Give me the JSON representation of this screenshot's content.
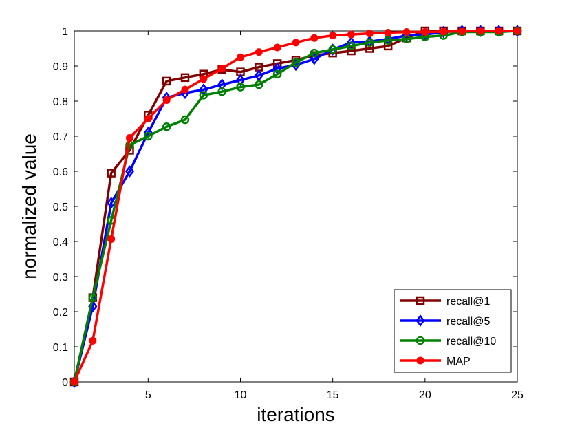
{
  "chart_data": {
    "type": "line",
    "title": "",
    "xlabel": "iterations",
    "ylabel": "normalized value",
    "xlim": [
      1,
      25
    ],
    "ylim": [
      0,
      1
    ],
    "xticks": [
      5,
      10,
      15,
      20,
      25
    ],
    "yticks": [
      0,
      0.1,
      0.2,
      0.3,
      0.4,
      0.5,
      0.6,
      0.7,
      0.8,
      0.9,
      1
    ],
    "ytick_labels": [
      "0",
      "0.1",
      "0.2",
      "0.3",
      "0.4",
      "0.5",
      "0.6",
      "0.7",
      "0.8",
      "0.9",
      "1"
    ],
    "grid": false,
    "legend_position": "bottom-right",
    "x": [
      1,
      2,
      3,
      4,
      5,
      6,
      7,
      8,
      9,
      10,
      11,
      12,
      13,
      14,
      15,
      16,
      17,
      18,
      19,
      20,
      21,
      22,
      23,
      24,
      25
    ],
    "series": [
      {
        "name": "recall@1",
        "color": "#800000",
        "marker": "square",
        "values": [
          0,
          0.24,
          0.595,
          0.66,
          0.76,
          0.857,
          0.867,
          0.877,
          0.89,
          0.883,
          0.897,
          0.907,
          0.917,
          0.93,
          0.937,
          0.943,
          0.95,
          0.957,
          0.98,
          1.0,
          1.0,
          1.0,
          1.0,
          1.0,
          1.0
        ]
      },
      {
        "name": "recall@5",
        "color": "#0000ff",
        "marker": "diamond",
        "values": [
          0,
          0.215,
          0.51,
          0.6,
          0.71,
          0.81,
          0.823,
          0.833,
          0.847,
          0.86,
          0.873,
          0.893,
          0.903,
          0.92,
          0.947,
          0.967,
          0.97,
          0.977,
          0.987,
          0.99,
          0.997,
          1.0,
          1.0,
          1.0,
          1.0
        ]
      },
      {
        "name": "recall@10",
        "color": "#008000",
        "marker": "circle-open",
        "values": [
          0,
          0.24,
          0.46,
          0.675,
          0.7,
          0.727,
          0.747,
          0.817,
          0.827,
          0.84,
          0.847,
          0.877,
          0.91,
          0.937,
          0.947,
          0.957,
          0.967,
          0.973,
          0.977,
          0.983,
          0.987,
          0.997,
          0.997,
          0.997,
          1.0
        ]
      },
      {
        "name": "MAP",
        "color": "#ff0000",
        "marker": "circle-filled",
        "values": [
          0,
          0.117,
          0.407,
          0.695,
          0.75,
          0.803,
          0.833,
          0.863,
          0.893,
          0.925,
          0.94,
          0.953,
          0.967,
          0.98,
          0.987,
          0.99,
          0.993,
          0.995,
          0.997,
          0.997,
          0.998,
          0.999,
          1.0,
          1.0,
          1.0
        ]
      }
    ]
  }
}
